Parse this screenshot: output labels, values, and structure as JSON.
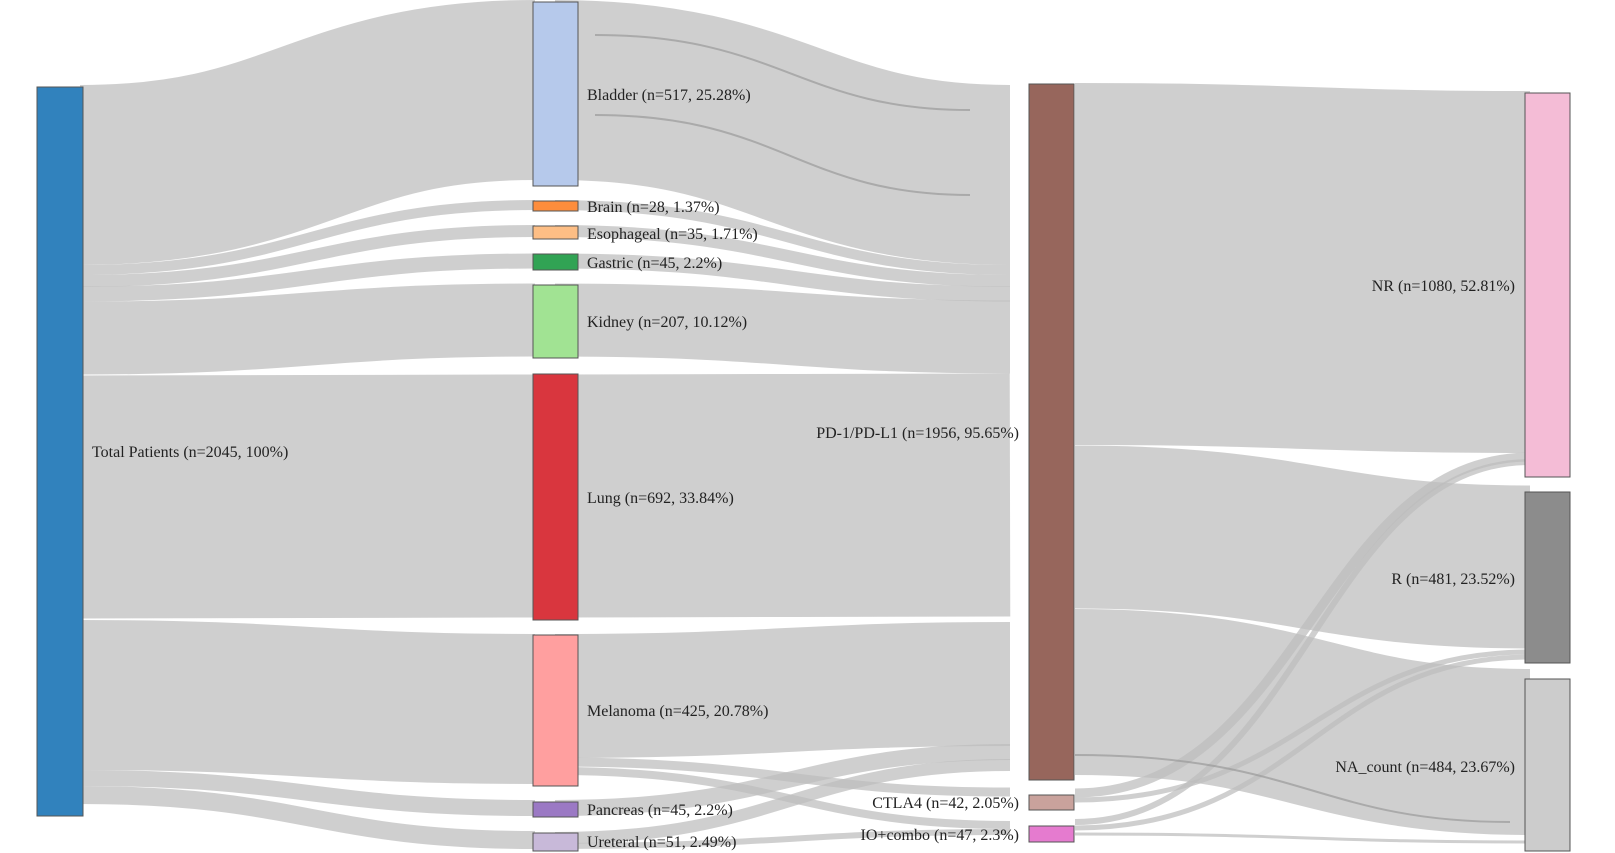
{
  "nodes": {
    "total": {
      "label": "Total Patients (n=2045, 100%)",
      "color": "#3182bd"
    },
    "bladder": {
      "label": "Bladder (n=517, 25.28%)",
      "color": "#b6c9eb"
    },
    "brain": {
      "label": "Brain (n=28, 1.37%)",
      "color": "#fd8d3c"
    },
    "esophageal": {
      "label": "Esophageal (n=35, 1.71%)",
      "color": "#fdbe85"
    },
    "gastric": {
      "label": "Gastric (n=45, 2.2%)",
      "color": "#31a354"
    },
    "kidney": {
      "label": "Kidney (n=207, 10.12%)",
      "color": "#a1e393"
    },
    "lung": {
      "label": "Lung (n=692, 33.84%)",
      "color": "#d9363e"
    },
    "melanoma": {
      "label": "Melanoma (n=425, 20.78%)",
      "color": "#ff9f9f"
    },
    "pancreas": {
      "label": "Pancreas (n=45, 2.2%)",
      "color": "#9b79c4"
    },
    "ureteral": {
      "label": "Ureteral (n=51, 2.49%)",
      "color": "#c8b9d9"
    },
    "pd1": {
      "label": "PD-1/PD-L1 (n=1956, 95.65%)",
      "color": "#97665c"
    },
    "ctla4": {
      "label": "CTLA4 (n=42, 2.05%)",
      "color": "#c9a29c"
    },
    "iocombo": {
      "label": "IO+combo (n=47, 2.3%)",
      "color": "#e57bcf"
    },
    "nr": {
      "label": "NR (n=1080, 52.81%)",
      "color": "#f4bcd6"
    },
    "r": {
      "label": "R (n=481, 23.52%)",
      "color": "#8c8c8c"
    },
    "na": {
      "label": "NA_count (n=484, 23.67%)",
      "color": "#cccccc"
    }
  }
}
